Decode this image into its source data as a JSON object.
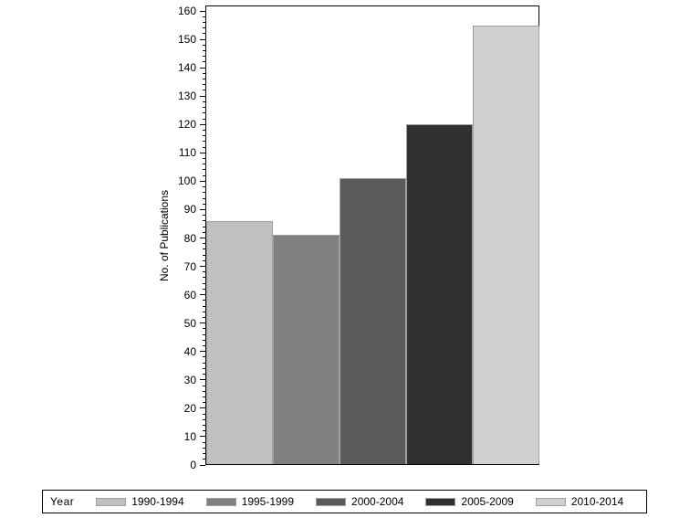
{
  "chart_data": {
    "type": "bar",
    "title": "",
    "xlabel": "",
    "ylabel": "No. of Publications",
    "ylim": [
      0,
      160
    ],
    "yticks": [
      0,
      10,
      20,
      30,
      40,
      50,
      60,
      70,
      80,
      90,
      100,
      110,
      120,
      130,
      140,
      150,
      160
    ],
    "grid": false,
    "legend_position": "bottom",
    "legend_title": "Year",
    "categories": [
      "1990-1994",
      "1995-1999",
      "2000-2004",
      "2005-2009",
      "2010-2014"
    ],
    "values": [
      86,
      81,
      101,
      120,
      155
    ],
    "colors": [
      "#c0c0c0",
      "#808080",
      "#5a5a5a",
      "#303030",
      "#d0d0d0"
    ]
  },
  "legend": {
    "title": "Year",
    "items": [
      {
        "label": "1990-1994",
        "color": "#c0c0c0"
      },
      {
        "label": "1995-1999",
        "color": "#808080"
      },
      {
        "label": "2000-2004",
        "color": "#5a5a5a"
      },
      {
        "label": "2005-2009",
        "color": "#303030"
      },
      {
        "label": "2010-2014",
        "color": "#d0d0d0"
      }
    ]
  },
  "axis": {
    "y_title": "No. of Publications"
  }
}
